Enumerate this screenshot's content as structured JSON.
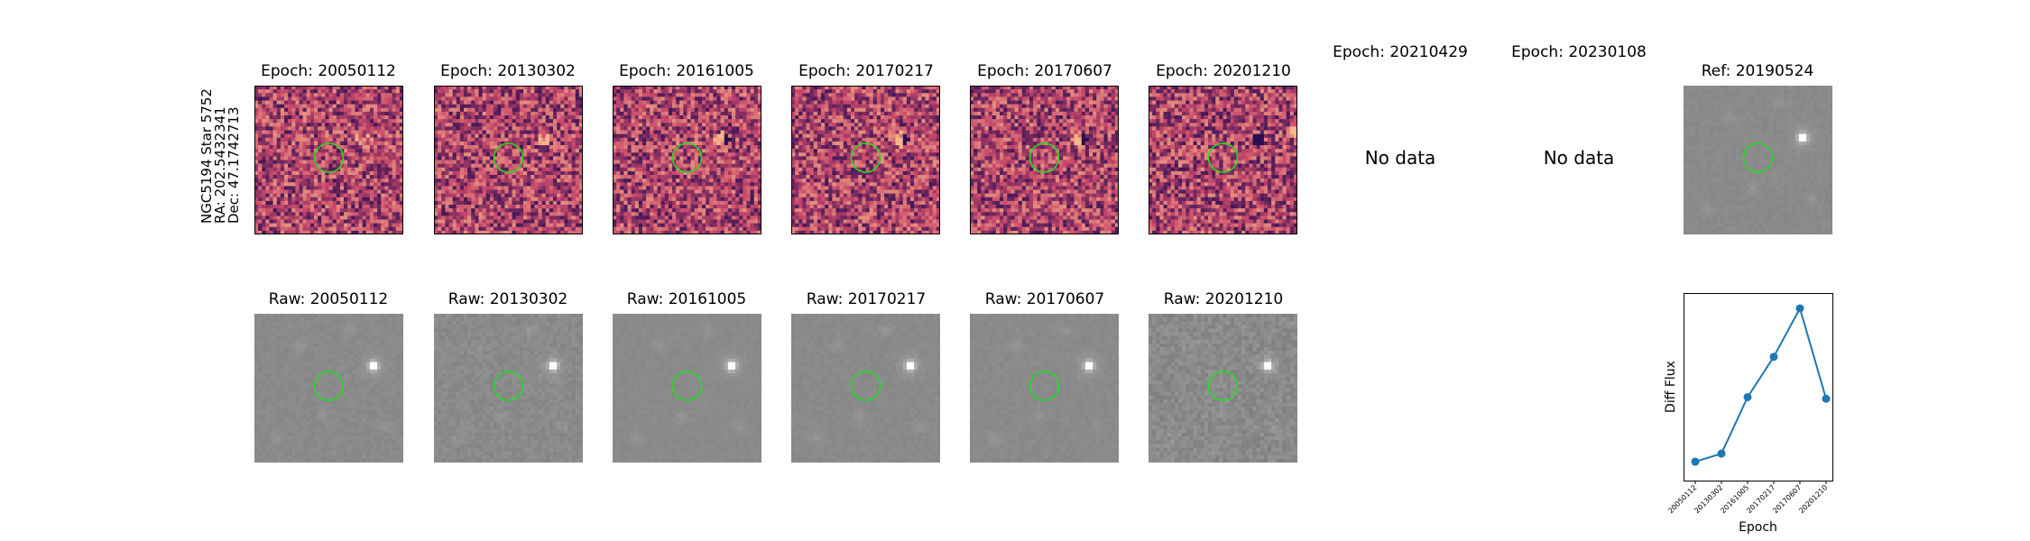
{
  "star_label": {
    "name": "NGC5194 Star 5752",
    "ra": "RA: 202.5432341",
    "dec": "Dec: 47.1742713"
  },
  "diff_titles": [
    "Epoch: 20050112",
    "Epoch: 20130302",
    "Epoch: 20161005",
    "Epoch: 20170217",
    "Epoch: 20170607",
    "Epoch: 20201210",
    "Epoch: 20210429",
    "Epoch: 20230108"
  ],
  "no_data_text": "No data",
  "ref_title": "Ref: 20190524",
  "raw_titles": [
    "Raw: 20050112",
    "Raw: 20130302",
    "Raw: 20161005",
    "Raw: 20170217",
    "Raw: 20170607",
    "Raw: 20201210"
  ],
  "colors": {
    "circle": "#22dd22",
    "line": "#1f77b4",
    "diff_low": "#2b0f55",
    "diff_mid": "#c8486a",
    "diff_high": "#f6b78a",
    "raw_bg": "#8a8a8a"
  },
  "chart_data": {
    "type": "line",
    "x": [
      "20050112",
      "20130302",
      "20161005",
      "20170217",
      "20170607",
      "20201210"
    ],
    "series": [
      {
        "values": [
          0.05,
          0.1,
          0.45,
          0.7,
          1.0,
          0.44
        ]
      }
    ],
    "xlabel": "Epoch",
    "ylabel": "Diff Flux",
    "yticks_shown": false
  }
}
